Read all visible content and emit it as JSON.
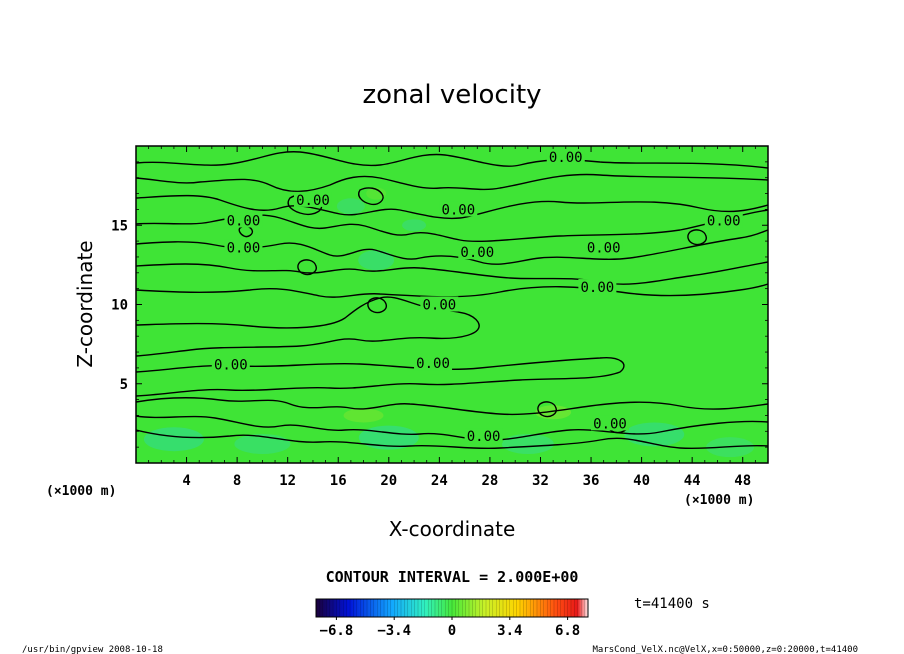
{
  "chart_data": {
    "type": "contour",
    "title": "zonal velocity",
    "xlabel": "X-coordinate",
    "ylabel": "Z-coordinate",
    "x_unit": "(×1000 m)",
    "y_unit": "(×1000 m)",
    "x_ticks": [
      4,
      8,
      12,
      16,
      20,
      24,
      28,
      32,
      36,
      40,
      44,
      48
    ],
    "y_ticks": [
      5,
      10,
      15
    ],
    "xlim": [
      0,
      50
    ],
    "ylim": [
      0,
      20
    ],
    "contour_interval_text": "CONTOUR INTERVAL = 2.000E+00",
    "time_label": "t=41400 s",
    "contour_labels": [
      {
        "text": "0.00",
        "x": 34.0,
        "z": 19.3
      },
      {
        "text": "0.00",
        "x": 14.0,
        "z": 16.6
      },
      {
        "text": "0.00",
        "x": 25.5,
        "z": 16.0
      },
      {
        "text": "0.00",
        "x": 8.5,
        "z": 15.3
      },
      {
        "text": "0.00",
        "x": 46.5,
        "z": 15.3
      },
      {
        "text": "0.00",
        "x": 8.5,
        "z": 13.6
      },
      {
        "text": "0.00",
        "x": 27.0,
        "z": 13.3
      },
      {
        "text": "0.00",
        "x": 37.0,
        "z": 13.6
      },
      {
        "text": "0.00",
        "x": 36.5,
        "z": 11.1
      },
      {
        "text": "0.00",
        "x": 24.0,
        "z": 10.0
      },
      {
        "text": "0.00",
        "x": 7.5,
        "z": 6.2
      },
      {
        "text": "0.00",
        "x": 23.5,
        "z": 6.3
      },
      {
        "text": "0.00",
        "x": 27.5,
        "z": 1.7
      },
      {
        "text": "0.00",
        "x": 37.5,
        "z": 2.5
      }
    ],
    "colorbar": {
      "min": -8.0,
      "max": 8.0,
      "tick_values": [
        -6.8,
        -3.4,
        0,
        3.4,
        6.8
      ],
      "tick_labels": [
        "−6.8",
        "−3.4",
        "0",
        "3.4",
        "6.8"
      ]
    },
    "field_range_approx": [
      -1.0,
      1.0
    ]
  },
  "footer": {
    "left": "/usr/bin/gpview  2008-10-18",
    "right": "MarsCond_VelX.nc@VelX,x=0:50000,z=0:20000,t=41400"
  }
}
